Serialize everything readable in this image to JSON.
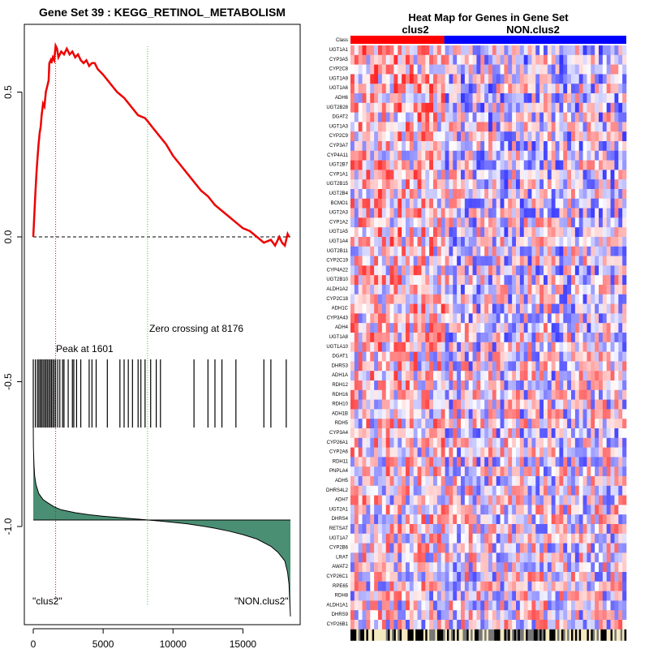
{
  "chart_data": [
    {
      "type": "line",
      "title": "Gene Set  39 : KEGG_RETINOL_METABOLISM",
      "xlabel": "",
      "ylabel": "",
      "xlim": [
        0,
        18400
      ],
      "ylim": [
        -1.3,
        0.7
      ],
      "x_ticks": [
        0,
        5000,
        10000,
        15000
      ],
      "x_tick_labels": [
        "0",
        "5000",
        "10000",
        "15000"
      ],
      "y_ticks": [
        0.5,
        0.0,
        -0.5,
        -1.0
      ],
      "y_tick_labels": [
        "0.5",
        "0.0",
        "-0.5",
        "-1.0"
      ],
      "series": [
        {
          "name": "",
          "color": "#ee0000",
          "x": [
            0,
            80,
            150,
            230,
            300,
            380,
            460,
            530,
            600,
            700,
            800,
            900,
            1000,
            1100,
            1150,
            1250,
            1300,
            1400,
            1500,
            1601,
            1700,
            1800,
            2000,
            2200,
            2400,
            2600,
            2800,
            3000,
            3200,
            3400,
            3600,
            3800,
            4000,
            4200,
            4400,
            4600,
            5000,
            5500,
            6000,
            6500,
            7000,
            7500,
            8000,
            8176,
            8500,
            9000,
            9500,
            10000,
            10500,
            11000,
            11500,
            12000,
            12500,
            13000,
            13500,
            14000,
            14500,
            15000,
            15500,
            16000,
            16500,
            17000,
            17300,
            17600,
            17800,
            18000,
            18200,
            18300
          ],
          "values": [
            0.0,
            0.08,
            0.15,
            0.22,
            0.27,
            0.32,
            0.36,
            0.38,
            0.42,
            0.46,
            0.45,
            0.5,
            0.52,
            0.54,
            0.6,
            0.61,
            0.6,
            0.62,
            0.61,
            0.66,
            0.65,
            0.62,
            0.64,
            0.63,
            0.65,
            0.63,
            0.64,
            0.62,
            0.63,
            0.61,
            0.6,
            0.61,
            0.59,
            0.6,
            0.6,
            0.58,
            0.56,
            0.53,
            0.5,
            0.48,
            0.45,
            0.42,
            0.41,
            0.4,
            0.38,
            0.35,
            0.32,
            0.28,
            0.25,
            0.22,
            0.19,
            0.16,
            0.14,
            0.11,
            0.09,
            0.07,
            0.05,
            0.03,
            0.02,
            0.0,
            -0.02,
            -0.01,
            -0.03,
            0.0,
            -0.02,
            -0.03,
            0.01,
            0.0
          ]
        }
      ],
      "reference_lines": [
        {
          "type": "horizontal",
          "y": 0.0,
          "style": "dashed",
          "color": "#000000"
        },
        {
          "type": "vertical",
          "x": 1601,
          "style": "dotted",
          "color": "#ee0000"
        },
        {
          "type": "vertical",
          "x": 8176,
          "style": "dotted",
          "color": "#33cc33"
        }
      ],
      "annotations": [
        {
          "text": "Peak at 1601",
          "x": 1601
        },
        {
          "text": "Zero crossing at 8176",
          "x": 8176
        },
        {
          "text": "\"clus2\"",
          "position": "bottom-left"
        },
        {
          "text": "\"NON.clus2\"",
          "position": "bottom-right"
        }
      ],
      "hit_positions": [
        0,
        150,
        300,
        400,
        500,
        600,
        700,
        800,
        900,
        1000,
        1100,
        1200,
        1300,
        1400,
        1500,
        1601,
        1750,
        1900,
        2100,
        2200,
        2500,
        2800,
        2900,
        3100,
        3400,
        4000,
        4200,
        4500,
        5300,
        6200,
        6500,
        6800,
        7100,
        7500,
        7700,
        8000,
        8400,
        8800,
        9100,
        11500,
        12500,
        13000,
        13500,
        14500,
        16500,
        17000,
        18100
      ],
      "ranked_metric": {
        "color": "#4a8f74",
        "x": [
          0,
          10,
          50,
          100,
          200,
          400,
          700,
          1000,
          1500,
          2000,
          3000,
          4000,
          5000,
          6000,
          7000,
          8000,
          8176,
          9000,
          10000,
          11000,
          12000,
          13000,
          14000,
          15000,
          16000,
          17000,
          17500,
          18000,
          18200,
          18300,
          18400
        ],
        "values": [
          0.33,
          0.25,
          0.19,
          0.15,
          0.12,
          0.09,
          0.07,
          0.06,
          0.045,
          0.035,
          0.025,
          0.018,
          0.013,
          0.009,
          0.005,
          0.001,
          0.0,
          -0.003,
          -0.008,
          -0.013,
          -0.02,
          -0.028,
          -0.038,
          -0.05,
          -0.065,
          -0.09,
          -0.11,
          -0.14,
          -0.18,
          -0.22,
          -0.33
        ]
      }
    },
    {
      "type": "heatmap",
      "title": "Heat Map for Genes in Gene Set",
      "class_label": "Class",
      "classes": [
        {
          "name": "clus2",
          "color": "#ff0000",
          "fraction": 0.34
        },
        {
          "name": "NON.clus2",
          "color": "#0000ff",
          "fraction": 0.66
        }
      ],
      "rows": [
        "UGT1A1",
        "CYP3A5",
        "CYP2C8",
        "UGT1A9",
        "UGT1A6",
        "ADH6",
        "UGT2B28",
        "DGAT2",
        "UGT1A3",
        "CYP2C9",
        "CYP3A7",
        "CYP4A11",
        "UGT2B7",
        "CYP1A1",
        "UGT2B15",
        "UGT2B4",
        "BCMO1",
        "UGT2A3",
        "CYP1A2",
        "UGT1A5",
        "UGT1A4",
        "UGT2B11",
        "CYP2C19",
        "CYP4A22",
        "UGT2B10",
        "ALDH1A2",
        "CYP2C18",
        "ADH1C",
        "CYP3A43",
        "ADH4",
        "UGT1A8",
        "UGT1A10",
        "DGAT1",
        "DHRS3",
        "ADH1A",
        "RDH12",
        "RDH16",
        "RDH10",
        "ADH1B",
        "RDH5",
        "CYP3A4",
        "CYP26A1",
        "CYP2A6",
        "RDH11",
        "PNPLA4",
        "ADH5",
        "DHRS4L2",
        "ADH7",
        "UGT2A1",
        "DHRS4",
        "RETSAT",
        "UGT1A7",
        "CYP2B6",
        "LRAT",
        "AWAT2",
        "CYP26C1",
        "RPE65",
        "RDH8",
        "ALDH1A1",
        "DHRS9",
        "CYP26B1"
      ],
      "color_scale": {
        "low": "#0000ff",
        "mid": "#ffffff",
        "high": "#ff0000"
      }
    }
  ]
}
